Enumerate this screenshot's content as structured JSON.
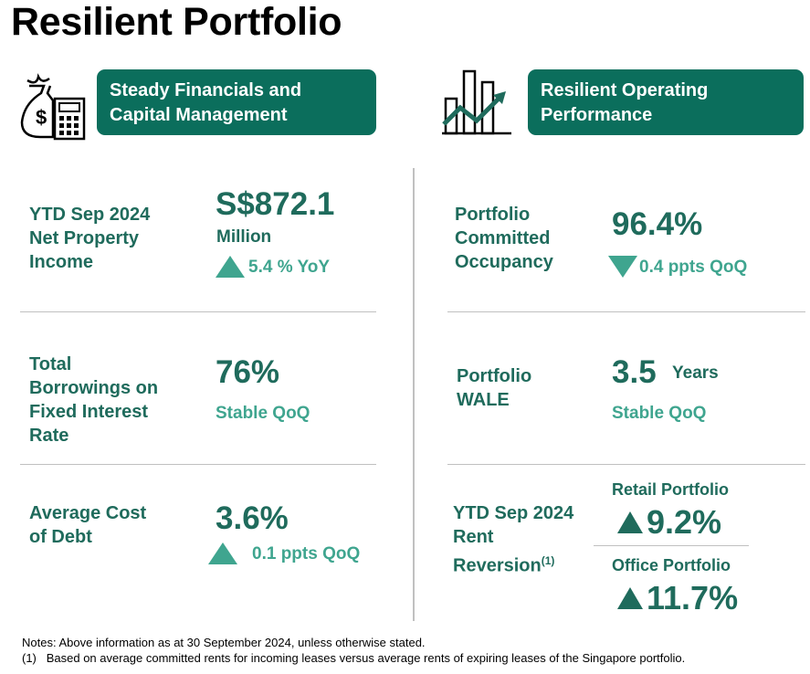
{
  "title": "Resilient Portfolio",
  "left_header": {
    "icon": "money-bag-calculator-icon",
    "line1": "Steady Financials and",
    "line2": "Capital Management"
  },
  "right_header": {
    "icon": "bar-chart-growth-icon",
    "line1": "Resilient Operating",
    "line2": "Performance"
  },
  "left": {
    "npi": {
      "label_lines": [
        "YTD Sep 2024",
        "Net Property",
        "Income"
      ],
      "value": "S$872.1",
      "unit": "Million",
      "delta": "5.4 % YoY",
      "direction": "up"
    },
    "fixed_rate": {
      "label_lines": [
        "Total",
        "Borrowings on",
        "Fixed Interest",
        "Rate"
      ],
      "value": "76%",
      "status": "Stable QoQ"
    },
    "cost_of_debt": {
      "label_lines": [
        "Average Cost",
        "of Debt"
      ],
      "value": "3.6%",
      "delta": "0.1 ppts QoQ",
      "direction": "up"
    }
  },
  "right": {
    "occupancy": {
      "label_lines": [
        "Portfolio",
        "Committed",
        "Occupancy"
      ],
      "value": "96.4%",
      "delta": "0.4 ppts QoQ",
      "direction": "down"
    },
    "wale": {
      "label_lines": [
        "Portfolio",
        "WALE"
      ],
      "value": "3.5",
      "unit": "Years",
      "status": "Stable QoQ"
    },
    "reversion": {
      "label_lines": [
        "YTD Sep 2024",
        "Rent",
        "Reversion"
      ],
      "footnote_mark": "(1)",
      "retail_label": "Retail Portfolio",
      "retail_value": "9.2%",
      "office_label": "Office Portfolio",
      "office_value": "11.7%"
    }
  },
  "notes": {
    "line1": "Notes: Above information as at 30 September 2024, unless otherwise stated.",
    "line2_mark": "(1)",
    "line2": "Based on average committed rents for incoming leases versus average rents of expiring leases of the Singapore portfolio."
  },
  "colors": {
    "pill": "#0b6e5c",
    "text": "#1f6b5c",
    "accent": "#3fa58f"
  }
}
